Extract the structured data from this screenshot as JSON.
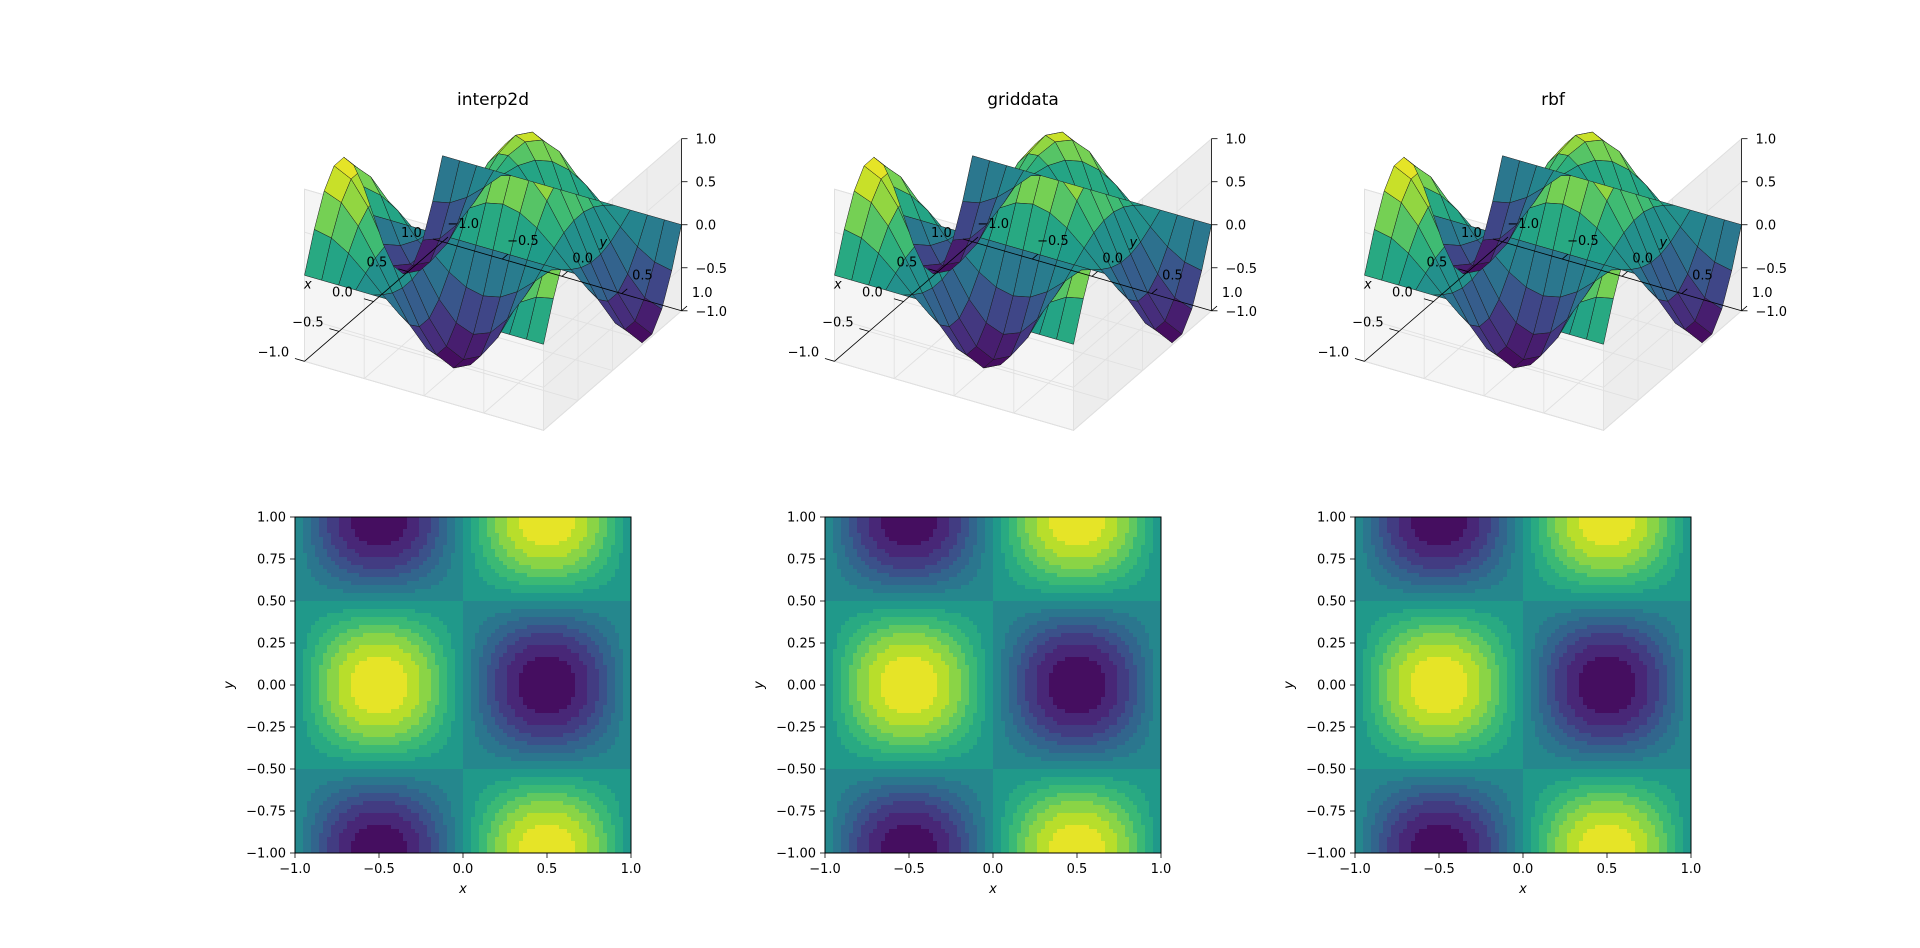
{
  "chart_data": [
    {
      "type": "surface3d",
      "title": "interp2d",
      "function": "sin(pi*x)*cos(pi*y)",
      "xlabel": "x",
      "ylabel": "y",
      "xlim": [
        -1,
        1
      ],
      "ylim": [
        -1,
        1
      ],
      "zlim": [
        -1,
        1
      ],
      "xticks": [
        "−1.0",
        "−0.5",
        "0.0",
        "0.5",
        "1.0"
      ],
      "yticks": [
        "−1.0",
        "−0.5",
        "0.0",
        "0.5",
        "1.0"
      ],
      "zticks": [
        "−1.0",
        "−0.5",
        "0.0",
        "0.5",
        "1.0"
      ],
      "colormap": "viridis"
    },
    {
      "type": "surface3d",
      "title": "griddata",
      "function": "sin(pi*x)*cos(pi*y)",
      "xlabel": "x",
      "ylabel": "y",
      "xlim": [
        -1,
        1
      ],
      "ylim": [
        -1,
        1
      ],
      "zlim": [
        -1,
        1
      ],
      "xticks": [
        "−1.0",
        "−0.5",
        "0.0",
        "0.5",
        "1.0"
      ],
      "yticks": [
        "−1.0",
        "−0.5",
        "0.0",
        "0.5",
        "1.0"
      ],
      "zticks": [
        "−1.0",
        "−0.5",
        "0.0",
        "0.5",
        "1.0"
      ],
      "colormap": "viridis"
    },
    {
      "type": "surface3d",
      "title": "rbf",
      "function": "sin(pi*x)*cos(pi*y)",
      "xlabel": "x",
      "ylabel": "y",
      "xlim": [
        -1,
        1
      ],
      "ylim": [
        -1,
        1
      ],
      "zlim": [
        -1,
        1
      ],
      "xticks": [
        "−1.0",
        "−0.5",
        "0.0",
        "0.5",
        "1.0"
      ],
      "yticks": [
        "−1.0",
        "−0.5",
        "0.0",
        "0.5",
        "1.0"
      ],
      "zticks": [
        "−1.0",
        "−0.5",
        "0.0",
        "0.5",
        "1.0"
      ],
      "colormap": "viridis"
    },
    {
      "type": "heatmap",
      "subtype": "filled-contour",
      "function": "-sin(pi*x)*cos(pi*y)",
      "xlabel": "x",
      "ylabel": "y",
      "xlim": [
        -1,
        1
      ],
      "ylim": [
        -1,
        1
      ],
      "xticks": [
        "−1.0",
        "−0.5",
        "0.0",
        "0.5",
        "1.0"
      ],
      "yticks": [
        "−1.00",
        "−0.75",
        "−0.50",
        "−0.25",
        "0.00",
        "0.25",
        "0.50",
        "0.75",
        "1.00"
      ],
      "colormap": "viridis"
    },
    {
      "type": "heatmap",
      "subtype": "filled-contour",
      "function": "-sin(pi*x)*cos(pi*y)",
      "xlabel": "x",
      "ylabel": "y",
      "xlim": [
        -1,
        1
      ],
      "ylim": [
        -1,
        1
      ],
      "xticks": [
        "−1.0",
        "−0.5",
        "0.0",
        "0.5",
        "1.0"
      ],
      "yticks": [
        "−1.00",
        "−0.75",
        "−0.50",
        "−0.25",
        "0.00",
        "0.25",
        "0.50",
        "0.75",
        "1.00"
      ],
      "colormap": "viridis"
    },
    {
      "type": "heatmap",
      "subtype": "filled-contour",
      "function": "-sin(pi*x)*cos(pi*y)",
      "xlabel": "x",
      "ylabel": "y",
      "xlim": [
        -1,
        1
      ],
      "ylim": [
        -1,
        1
      ],
      "xticks": [
        "−1.0",
        "−0.5",
        "0.0",
        "0.5",
        "1.0"
      ],
      "yticks": [
        "−1.00",
        "−0.75",
        "−0.50",
        "−0.25",
        "0.00",
        "0.25",
        "0.50",
        "0.75",
        "1.00"
      ],
      "colormap": "viridis"
    }
  ],
  "colors": {
    "viridis": [
      "#440154",
      "#482878",
      "#3e4989",
      "#31688e",
      "#26828e",
      "#1f9e89",
      "#35b779",
      "#6ece58",
      "#b5de2b",
      "#fde725"
    ],
    "pane": "#f2f2f2",
    "grid": "#e6e6e6",
    "axis": "#000000"
  }
}
